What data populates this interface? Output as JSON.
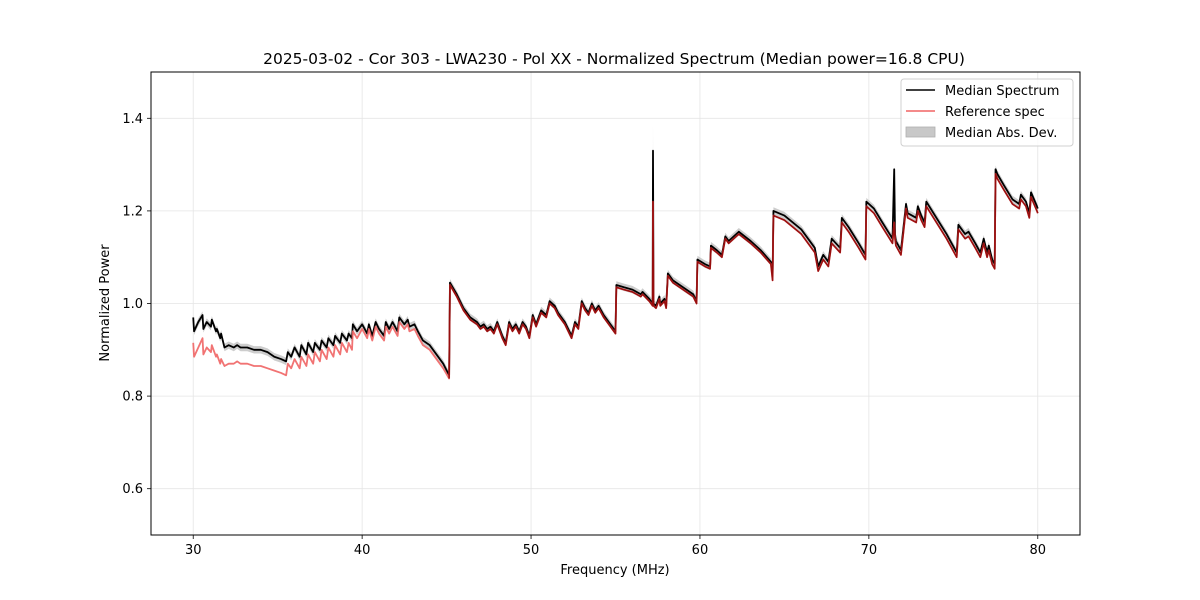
{
  "chart_data": {
    "type": "line",
    "title": "2025-03-02 - Cor 303 - LWA230 - Pol XX - Normalized Spectrum (Median power=16.8 CPU)",
    "xlabel": "Frequency (MHz)",
    "ylabel": "Normalized Power",
    "xlim": [
      27.5,
      82.5
    ],
    "ylim": [
      0.5,
      1.5
    ],
    "xticks": [
      30,
      40,
      50,
      60,
      70,
      80
    ],
    "xtick_labels": [
      "30",
      "40",
      "50",
      "60",
      "70",
      "80"
    ],
    "yticks": [
      0.6,
      0.8,
      1.0,
      1.2,
      1.4
    ],
    "ytick_labels": [
      "0.6",
      "0.8",
      "1.0",
      "1.2",
      "1.4"
    ],
    "grid": true,
    "legend_position": "top-right",
    "legend": [
      {
        "label": "Median Spectrum",
        "kind": "line",
        "color": "#000000"
      },
      {
        "label": "Reference spec",
        "kind": "line",
        "color": "#f05a5a"
      },
      {
        "label": "Median Abs. Dev.",
        "kind": "patch",
        "color": "#c8c8c8"
      }
    ],
    "colors": {
      "median": "#000000",
      "reference": "#f06464",
      "overlap": "#8b0000",
      "mad": "#c8c8c8",
      "grid": "#e5e5e5"
    },
    "series": [
      {
        "name": "Median Spectrum",
        "x": [
          30.0,
          30.05,
          30.3,
          30.55,
          30.6,
          30.8,
          31.05,
          31.1,
          31.35,
          31.4,
          31.6,
          31.65,
          31.85,
          32.1,
          32.4,
          32.6,
          32.8,
          33.2,
          33.6,
          34.0,
          34.4,
          34.8,
          35.2,
          35.5,
          35.6,
          35.8,
          36.0,
          36.3,
          36.4,
          36.7,
          36.8,
          37.1,
          37.2,
          37.5,
          37.6,
          37.9,
          38.0,
          38.3,
          38.4,
          38.7,
          38.8,
          39.1,
          39.2,
          39.4,
          39.45,
          39.7,
          40.0,
          40.3,
          40.4,
          40.6,
          40.8,
          41.0,
          41.3,
          41.4,
          41.6,
          41.8,
          42.1,
          42.2,
          42.5,
          42.7,
          42.8,
          43.1,
          43.3,
          43.6,
          44.0,
          44.4,
          44.8,
          45.15,
          45.2,
          45.6,
          46.0,
          46.4,
          46.8,
          47.0,
          47.2,
          47.4,
          47.6,
          47.8,
          48.0,
          48.3,
          48.5,
          48.7,
          48.9,
          49.1,
          49.3,
          49.5,
          49.7,
          49.9,
          50.1,
          50.3,
          50.6,
          50.9,
          51.1,
          51.4,
          51.6,
          52.0,
          52.4,
          52.6,
          52.8,
          53.0,
          53.2,
          53.4,
          53.6,
          53.8,
          54.0,
          54.3,
          54.6,
          55.0,
          55.05,
          55.5,
          56.0,
          56.5,
          56.6,
          57.0,
          57.2,
          57.22,
          57.25,
          57.4,
          57.6,
          57.65,
          57.9,
          58.0,
          58.1,
          58.4,
          58.8,
          59.2,
          59.6,
          59.8,
          59.85,
          60.3,
          60.6,
          60.65,
          61.0,
          61.3,
          61.5,
          61.7,
          62.3,
          63.0,
          63.6,
          64.2,
          64.3,
          64.35,
          65.0,
          66.0,
          66.8,
          67.0,
          67.3,
          67.6,
          67.8,
          68.3,
          68.4,
          68.8,
          69.4,
          69.8,
          69.85,
          70.3,
          70.8,
          71.4,
          71.5,
          71.55,
          71.6,
          71.9,
          72.2,
          72.3,
          72.8,
          72.9,
          73.1,
          73.3,
          73.4,
          74.0,
          74.6,
          75.2,
          75.3,
          75.7,
          75.9,
          76.3,
          76.6,
          76.8,
          77.0,
          77.1,
          77.3,
          77.45,
          77.5,
          77.6,
          78.0,
          78.5,
          78.9,
          79.0,
          79.3,
          79.5,
          79.6,
          79.95,
          80.0
        ],
        "y": [
          0.97,
          0.94,
          0.96,
          0.975,
          0.945,
          0.96,
          0.95,
          0.965,
          0.94,
          0.945,
          0.925,
          0.935,
          0.905,
          0.91,
          0.905,
          0.91,
          0.905,
          0.905,
          0.9,
          0.9,
          0.895,
          0.885,
          0.88,
          0.875,
          0.895,
          0.885,
          0.905,
          0.885,
          0.91,
          0.89,
          0.915,
          0.895,
          0.915,
          0.9,
          0.92,
          0.905,
          0.925,
          0.91,
          0.93,
          0.915,
          0.935,
          0.92,
          0.935,
          0.925,
          0.955,
          0.94,
          0.955,
          0.935,
          0.955,
          0.93,
          0.96,
          0.945,
          0.93,
          0.96,
          0.945,
          0.96,
          0.94,
          0.97,
          0.955,
          0.965,
          0.95,
          0.955,
          0.94,
          0.92,
          0.91,
          0.89,
          0.87,
          0.845,
          1.045,
          1.02,
          0.99,
          0.97,
          0.96,
          0.95,
          0.955,
          0.945,
          0.95,
          0.94,
          0.96,
          0.93,
          0.915,
          0.96,
          0.945,
          0.955,
          0.94,
          0.96,
          0.95,
          0.93,
          0.975,
          0.955,
          0.985,
          0.975,
          1.005,
          0.995,
          0.98,
          0.96,
          0.93,
          0.96,
          0.95,
          1.005,
          0.99,
          0.98,
          1.0,
          0.985,
          0.995,
          0.975,
          0.96,
          0.94,
          1.04,
          1.035,
          1.03,
          1.02,
          1.025,
          1.01,
          1.0,
          1.33,
          1.0,
          0.995,
          1.015,
          1.0,
          1.01,
          0.995,
          1.065,
          1.05,
          1.04,
          1.03,
          1.02,
          1.005,
          1.095,
          1.085,
          1.08,
          1.125,
          1.115,
          1.105,
          1.145,
          1.135,
          1.155,
          1.135,
          1.115,
          1.09,
          1.06,
          1.2,
          1.19,
          1.16,
          1.12,
          1.08,
          1.105,
          1.09,
          1.14,
          1.12,
          1.185,
          1.165,
          1.13,
          1.105,
          1.22,
          1.205,
          1.175,
          1.14,
          1.29,
          1.15,
          1.135,
          1.115,
          1.215,
          1.195,
          1.185,
          1.21,
          1.19,
          1.175,
          1.22,
          1.185,
          1.15,
          1.11,
          1.17,
          1.15,
          1.155,
          1.13,
          1.11,
          1.14,
          1.11,
          1.125,
          1.095,
          1.085,
          1.29,
          1.28,
          1.255,
          1.225,
          1.215,
          1.235,
          1.22,
          1.195,
          1.24,
          1.21,
          1.205
        ]
      },
      {
        "name": "Reference spec",
        "x": [
          30.0,
          30.05,
          30.3,
          30.55,
          30.6,
          30.8,
          31.05,
          31.1,
          31.35,
          31.4,
          31.6,
          31.65,
          31.85,
          32.1,
          32.4,
          32.6,
          32.8,
          33.2,
          33.6,
          34.0,
          34.4,
          34.8,
          35.2,
          35.5,
          35.6,
          35.8,
          36.0,
          36.3,
          36.4,
          36.7,
          36.8,
          37.1,
          37.2,
          37.5,
          37.6,
          37.9,
          38.0,
          38.3,
          38.4,
          38.7,
          38.8,
          39.1,
          39.2,
          39.4,
          39.45,
          39.7,
          40.0,
          40.3,
          40.4,
          40.6,
          40.8,
          41.0,
          41.3,
          41.4,
          41.6,
          41.8,
          42.1,
          42.2,
          42.5,
          42.7,
          42.8,
          43.1,
          43.3,
          43.6,
          44.0,
          44.4,
          44.8,
          45.15,
          45.2,
          45.6,
          46.0,
          46.4,
          46.8,
          47.0,
          47.2,
          47.4,
          47.6,
          47.8,
          48.0,
          48.3,
          48.5,
          48.7,
          48.9,
          49.1,
          49.3,
          49.5,
          49.7,
          49.9,
          50.1,
          50.3,
          50.6,
          50.9,
          51.1,
          51.4,
          51.6,
          52.0,
          52.4,
          52.6,
          52.8,
          53.0,
          53.2,
          53.4,
          53.6,
          53.8,
          54.0,
          54.3,
          54.6,
          55.0,
          55.05,
          55.5,
          56.0,
          56.5,
          56.6,
          57.0,
          57.2,
          57.22,
          57.25,
          57.4,
          57.6,
          57.65,
          57.9,
          58.0,
          58.1,
          58.4,
          58.8,
          59.2,
          59.6,
          59.8,
          59.85,
          60.3,
          60.6,
          60.65,
          61.0,
          61.3,
          61.5,
          61.7,
          62.3,
          63.0,
          63.6,
          64.2,
          64.3,
          64.35,
          65.0,
          66.0,
          66.8,
          67.0,
          67.3,
          67.6,
          67.8,
          68.3,
          68.4,
          68.8,
          69.4,
          69.8,
          69.85,
          70.3,
          70.8,
          71.4,
          71.5,
          71.55,
          71.6,
          71.9,
          72.2,
          72.3,
          72.8,
          72.9,
          73.1,
          73.3,
          73.4,
          74.0,
          74.6,
          75.2,
          75.3,
          75.7,
          75.9,
          76.3,
          76.6,
          76.8,
          77.0,
          77.1,
          77.3,
          77.45,
          77.5,
          77.6,
          78.0,
          78.5,
          78.9,
          79.0,
          79.3,
          79.5,
          79.6,
          79.95,
          80.0
        ],
        "y": [
          0.915,
          0.885,
          0.905,
          0.925,
          0.89,
          0.905,
          0.895,
          0.91,
          0.885,
          0.89,
          0.87,
          0.88,
          0.865,
          0.87,
          0.87,
          0.875,
          0.87,
          0.87,
          0.865,
          0.865,
          0.86,
          0.855,
          0.85,
          0.845,
          0.87,
          0.86,
          0.88,
          0.86,
          0.885,
          0.865,
          0.89,
          0.87,
          0.895,
          0.875,
          0.9,
          0.88,
          0.905,
          0.885,
          0.91,
          0.89,
          0.915,
          0.895,
          0.915,
          0.9,
          0.94,
          0.925,
          0.945,
          0.925,
          0.945,
          0.92,
          0.95,
          0.935,
          0.92,
          0.95,
          0.935,
          0.95,
          0.93,
          0.96,
          0.945,
          0.955,
          0.94,
          0.945,
          0.93,
          0.91,
          0.9,
          0.88,
          0.86,
          0.838,
          1.04,
          1.015,
          0.985,
          0.965,
          0.955,
          0.945,
          0.95,
          0.94,
          0.945,
          0.935,
          0.955,
          0.925,
          0.91,
          0.955,
          0.94,
          0.95,
          0.935,
          0.955,
          0.945,
          0.925,
          0.97,
          0.95,
          0.98,
          0.97,
          1.0,
          0.99,
          0.975,
          0.955,
          0.925,
          0.955,
          0.945,
          1.0,
          0.985,
          0.975,
          0.995,
          0.98,
          0.99,
          0.97,
          0.955,
          0.935,
          1.035,
          1.03,
          1.025,
          1.015,
          1.02,
          1.005,
          0.995,
          1.22,
          0.995,
          0.99,
          1.01,
          0.995,
          1.005,
          0.99,
          1.06,
          1.045,
          1.035,
          1.025,
          1.015,
          1.0,
          1.09,
          1.08,
          1.075,
          1.12,
          1.11,
          1.1,
          1.14,
          1.13,
          1.15,
          1.13,
          1.11,
          1.085,
          1.05,
          1.19,
          1.18,
          1.15,
          1.11,
          1.07,
          1.095,
          1.08,
          1.13,
          1.11,
          1.175,
          1.155,
          1.12,
          1.095,
          1.21,
          1.195,
          1.165,
          1.13,
          1.175,
          1.14,
          1.125,
          1.105,
          1.205,
          1.185,
          1.175,
          1.2,
          1.18,
          1.165,
          1.21,
          1.175,
          1.14,
          1.1,
          1.16,
          1.14,
          1.145,
          1.12,
          1.1,
          1.13,
          1.1,
          1.115,
          1.085,
          1.075,
          1.28,
          1.27,
          1.245,
          1.215,
          1.205,
          1.225,
          1.21,
          1.185,
          1.23,
          1.2,
          1.195
        ]
      },
      {
        "name": "Median Abs. Dev.",
        "kind": "band_halfwidth",
        "note": "±MAD around median spectrum; larger near spike at 57.2 MHz",
        "typical": 0.008,
        "spike": {
          "x": 57.2,
          "upper": 1.385
        }
      }
    ]
  }
}
